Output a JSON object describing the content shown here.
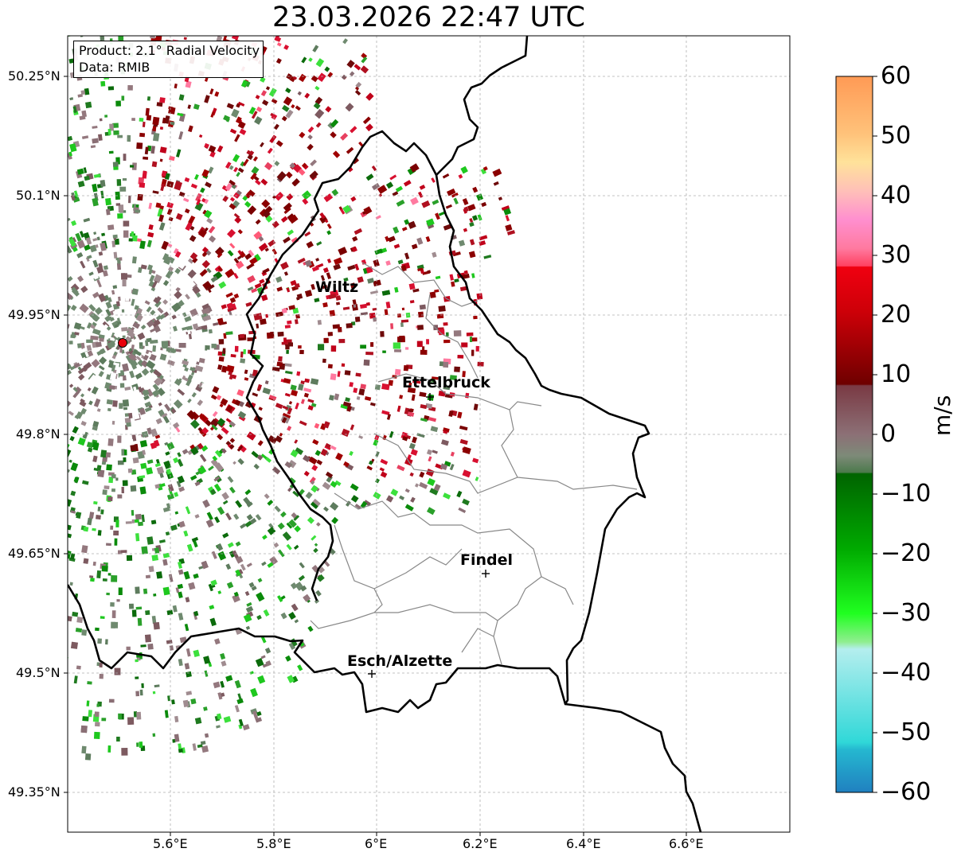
{
  "title": "23.03.2026 22:47 UTC",
  "info": {
    "product": "Product: 2.1° Radial Velocity",
    "source": "Data: RMIB"
  },
  "cities": [
    {
      "name": "Wiltz",
      "marker": false
    },
    {
      "name": "Ettelbruck",
      "marker": true
    },
    {
      "name": "Findel",
      "marker": true
    },
    {
      "name": "Esch/Alzette",
      "marker": true
    }
  ],
  "radar_site": {
    "marker_color": "#e8000b"
  },
  "axes": {
    "lat_ticks": [
      "50.25°N",
      "50.1°N",
      "49.95°N",
      "49.8°N",
      "49.65°N",
      "49.5°N",
      "49.35°N"
    ],
    "lon_ticks": [
      "5.6°E",
      "5.8°E",
      "6°E",
      "6.2°E",
      "6.4°E",
      "6.6°E"
    ]
  },
  "colorbar": {
    "label": "m/s",
    "ticks": [
      "60",
      "50",
      "40",
      "30",
      "20",
      "10",
      "0",
      "−10",
      "−20",
      "−30",
      "−40",
      "−50",
      "−60"
    ],
    "range": [
      -60,
      60
    ]
  },
  "colors": {
    "strong_inbound_red": "#8b0000",
    "outbound_green": "#1f7a1f",
    "near_zero": "#8a6f75",
    "border": "#000000",
    "canton_lines": "#888888"
  }
}
